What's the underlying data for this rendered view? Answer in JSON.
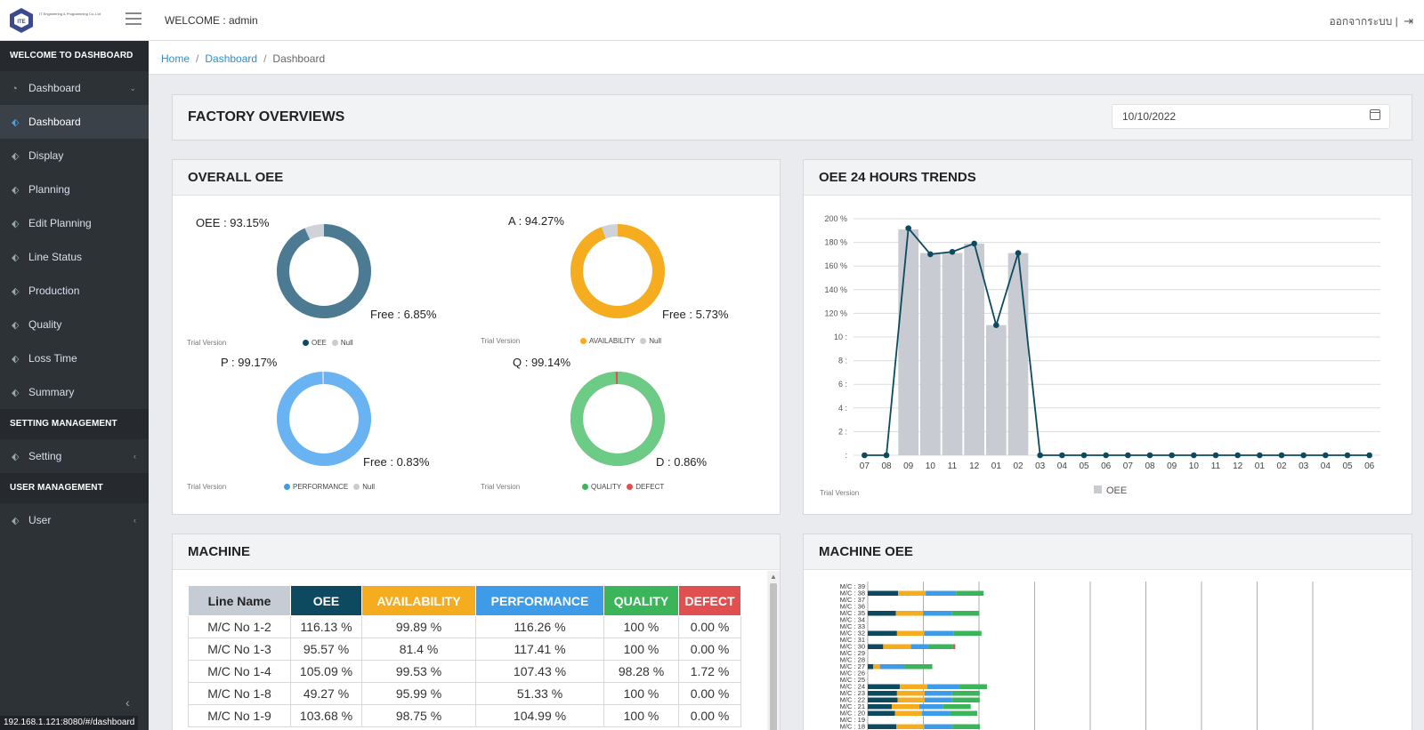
{
  "header": {
    "logo_text": "IT Engineering & Programming Co.,Ltd",
    "welcome": "WELCOME : admin",
    "logout": "ออกจากระบบ |",
    "logout_icon": "sign-out-icon"
  },
  "sidebar": {
    "section_dashboard": "WELCOME TO DASHBOARD",
    "items_main": [
      {
        "label": "Dashboard",
        "icon": "gauge-icon",
        "arrow": "⌄"
      },
      {
        "label": "Dashboard",
        "icon": "tag-icon"
      },
      {
        "label": "Display",
        "icon": "tag-icon"
      },
      {
        "label": "Planning",
        "icon": "tag-icon"
      },
      {
        "label": "Edit Planning",
        "icon": "tag-icon"
      },
      {
        "label": "Line Status",
        "icon": "tag-icon"
      },
      {
        "label": "Production",
        "icon": "tag-icon"
      },
      {
        "label": "Quality",
        "icon": "tag-icon"
      },
      {
        "label": "Loss Time",
        "icon": "tag-icon"
      },
      {
        "label": "Summary",
        "icon": "tag-icon"
      }
    ],
    "section_setting": "SETTING MANAGEMENT",
    "setting_label": "Setting",
    "section_user": "USER MANAGEMENT",
    "user_label": "User",
    "status_url": "192.168.1.121:8080/#/dashboard"
  },
  "breadcrumb": {
    "home": "Home",
    "dashboard": "Dashboard",
    "current": "Dashboard"
  },
  "factory": {
    "title": "FACTORY OVERVIEWS",
    "date": "10/10/2022"
  },
  "overall_oee": {
    "title": "OVERALL OEE",
    "trial": "Trial Version",
    "donuts": [
      {
        "main_label": "OEE : 93.15%",
        "rest_label": "Free : 6.85%",
        "value": 93.15,
        "color": "#4b7a92",
        "rest_color": "#cfd2d6",
        "legend": [
          "OEE",
          "Null"
        ],
        "legend_colors": [
          "#0d4a60",
          "#cccccc"
        ]
      },
      {
        "main_label": "A : 94.27%",
        "rest_label": "Free : 5.73%",
        "value": 94.27,
        "color": "#f5ad1f",
        "rest_color": "#cfd2d6",
        "legend": [
          "AVAILABILITY",
          "Null"
        ],
        "legend_colors": [
          "#f5ad1f",
          "#cccccc"
        ]
      },
      {
        "main_label": "P : 99.17%",
        "rest_label": "Free : 0.83%",
        "value": 99.17,
        "color": "#6ab3f3",
        "rest_color": "#cfd2d6",
        "legend": [
          "PERFORMANCE",
          "Null"
        ],
        "legend_colors": [
          "#3d9be8",
          "#cccccc"
        ]
      },
      {
        "main_label": "Q : 99.14%",
        "rest_label": "D : 0.86%",
        "value": 99.14,
        "color": "#6ccc85",
        "rest_color": "#e05050",
        "legend": [
          "QUALITY",
          "DEFECT"
        ],
        "legend_colors": [
          "#3cb45a",
          "#e05050"
        ]
      }
    ]
  },
  "trend": {
    "title": "OEE 24 HOURS TRENDS",
    "trial": "Trial Version",
    "legend": "OEE",
    "y_ticks": [
      "200 %",
      "180 %",
      "160 %",
      "140 %",
      "120 %",
      "10 :",
      "8 :",
      "6 :",
      "4 :",
      "2 :",
      ":"
    ],
    "x_ticks": [
      "07",
      "08",
      "09",
      "10",
      "11",
      "12",
      "01",
      "02",
      "03",
      "04",
      "05",
      "06",
      "07",
      "08",
      "09",
      "10",
      "11",
      "12",
      "01",
      "02",
      "03",
      "04",
      "05",
      "06"
    ],
    "bars": [
      0,
      0,
      191,
      171,
      171,
      179,
      110,
      171,
      0,
      0,
      0,
      0,
      0,
      0,
      0,
      0,
      0,
      0,
      0,
      0,
      0,
      0,
      0,
      0
    ],
    "line": [
      0,
      0,
      192,
      170,
      172,
      179,
      110,
      171,
      0,
      0,
      0,
      0,
      0,
      0,
      0,
      0,
      0,
      0,
      0,
      0,
      0,
      0,
      0,
      0
    ],
    "bar_color": "#c8cbd1",
    "line_color": "#0d4a60"
  },
  "machine": {
    "title": "MACHINE",
    "headers": [
      {
        "label": "Line Name",
        "bg": "#c6ccd4",
        "fg": "#222"
      },
      {
        "label": "OEE",
        "bg": "#0d4a60",
        "fg": "#fff"
      },
      {
        "label": "AVAILABILITY",
        "bg": "#f5ad1f",
        "fg": "#fff"
      },
      {
        "label": "PERFORMANCE",
        "bg": "#3d9be8",
        "fg": "#fff"
      },
      {
        "label": "QUALITY",
        "bg": "#3cb45a",
        "fg": "#fff"
      },
      {
        "label": "DEFECT",
        "bg": "#e05050",
        "fg": "#fff"
      }
    ],
    "rows": [
      [
        "M/C No 1-2",
        "116.13 %",
        "99.89 %",
        "116.26 %",
        "100 %",
        "0.00 %"
      ],
      [
        "M/C No 1-3",
        "95.57 %",
        "81.4 %",
        "117.41 %",
        "100 %",
        "0.00 %"
      ],
      [
        "M/C No 1-4",
        "105.09 %",
        "99.53 %",
        "107.43 %",
        "98.28 %",
        "1.72 %"
      ],
      [
        "M/C No 1-8",
        "49.27 %",
        "95.99 %",
        "51.33 %",
        "100 %",
        "0.00 %"
      ],
      [
        "M/C No 1-9",
        "103.68 %",
        "98.75 %",
        "104.99 %",
        "100 %",
        "0.00 %"
      ]
    ]
  },
  "machine_oee": {
    "title": "MACHINE OEE",
    "labels": [
      "M/C : 39",
      "M/C : 38",
      "M/C : 37",
      "M/C : 36",
      "M/C : 35",
      "M/C : 34",
      "M/C : 33",
      "M/C : 32",
      "M/C : 31",
      "M/C : 30",
      "M/C : 29",
      "M/C : 28",
      "M/C : 27",
      "M/C : 26",
      "M/C : 25",
      "M/C : 24",
      "M/C : 23",
      "M/C : 22",
      "M/C : 21",
      "M/C : 20",
      "M/C : 19",
      "M/C : 18"
    ],
    "colors": [
      "#0d4a60",
      "#f5ad1f",
      "#3d9be8",
      "#3cb45a",
      "#e05050"
    ],
    "stacks": [
      [
        0,
        0,
        0,
        0,
        0
      ],
      [
        110,
        100,
        110,
        100,
        0
      ],
      [
        0,
        0,
        0,
        0,
        0
      ],
      [
        0,
        0,
        0,
        0,
        0
      ],
      [
        102,
        99,
        103,
        100,
        0
      ],
      [
        0,
        0,
        0,
        0,
        0
      ],
      [
        0,
        0,
        0,
        0,
        0
      ],
      [
        106,
        99,
        107,
        100,
        0
      ],
      [
        0,
        0,
        0,
        0,
        0
      ],
      [
        56,
        100,
        63,
        90,
        8
      ],
      [
        0,
        0,
        0,
        0,
        0
      ],
      [
        0,
        0,
        0,
        0,
        0
      ],
      [
        20,
        24,
        90,
        100,
        0
      ],
      [
        0,
        0,
        0,
        0,
        0
      ],
      [
        0,
        0,
        0,
        0,
        0
      ],
      [
        116,
        100,
        116,
        100,
        0
      ],
      [
        106,
        100,
        100,
        100,
        0
      ],
      [
        108,
        98,
        100,
        100,
        0
      ],
      [
        87,
        100,
        86,
        100,
        0
      ],
      [
        99,
        98,
        100,
        100,
        0
      ],
      [
        0,
        0,
        0,
        0,
        0
      ],
      [
        104,
        100,
        103,
        100,
        0
      ]
    ]
  }
}
